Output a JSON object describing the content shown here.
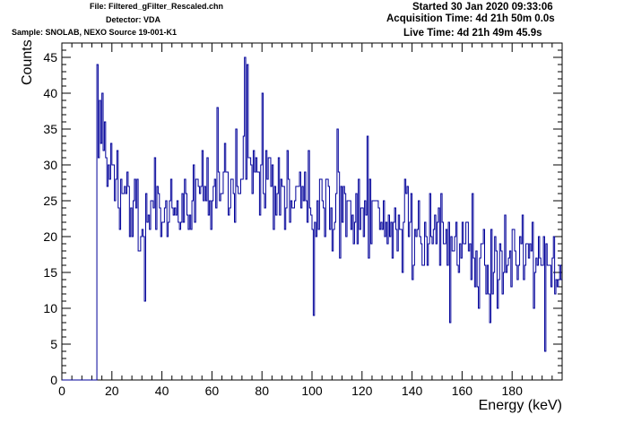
{
  "header": {
    "file": "File: Filtered_gFilter_Rescaled.chn",
    "detector": "Detector: VDA",
    "sample": "Sample: SNOLAB, NEXO Source 19-001-K1",
    "started": "Started 30 Jan 2020 09:33:06",
    "acquisition_time": "Acquisition Time: 4d 21h 50m 0.0s",
    "live_time": "Live Time: 4d 21h 49m 45.9s"
  },
  "chart_data": {
    "type": "histogram",
    "xlabel": "Energy (keV)",
    "ylabel": "Counts",
    "xlim": [
      0,
      200
    ],
    "ylim": [
      0,
      47
    ],
    "xticks": [
      0,
      20,
      40,
      60,
      80,
      100,
      120,
      140,
      160,
      180
    ],
    "yticks": [
      0,
      5,
      10,
      15,
      20,
      25,
      30,
      35,
      40,
      45
    ],
    "line_color": "#000099",
    "bin_width_kev": 0.5,
    "spectrum_start_kev": 14,
    "counts_below_start": 0,
    "leading_spike": {
      "energy_kev": 14,
      "counts": 44
    },
    "envelope": [
      {
        "energy_kev": 14,
        "counts": 34
      },
      {
        "energy_kev": 17,
        "counts": 33
      },
      {
        "energy_kev": 20,
        "counts": 28
      },
      {
        "energy_kev": 25,
        "counts": 26
      },
      {
        "energy_kev": 30,
        "counts": 24
      },
      {
        "energy_kev": 35,
        "counts": 22
      },
      {
        "energy_kev": 40,
        "counts": 22
      },
      {
        "energy_kev": 45,
        "counts": 23
      },
      {
        "energy_kev": 50,
        "counts": 24
      },
      {
        "energy_kev": 55,
        "counts": 25
      },
      {
        "energy_kev": 60,
        "counts": 26
      },
      {
        "energy_kev": 65,
        "counts": 27
      },
      {
        "energy_kev": 70,
        "counts": 28
      },
      {
        "energy_kev": 73,
        "counts": 31
      },
      {
        "energy_kev": 75,
        "counts": 29
      },
      {
        "energy_kev": 80,
        "counts": 28
      },
      {
        "energy_kev": 85,
        "counts": 27
      },
      {
        "energy_kev": 90,
        "counts": 26
      },
      {
        "energy_kev": 95,
        "counts": 25
      },
      {
        "energy_kev": 100,
        "counts": 24
      },
      {
        "energy_kev": 105,
        "counts": 24
      },
      {
        "energy_kev": 110,
        "counts": 23
      },
      {
        "energy_kev": 115,
        "counts": 23
      },
      {
        "energy_kev": 120,
        "counts": 22
      },
      {
        "energy_kev": 125,
        "counts": 22
      },
      {
        "energy_kev": 130,
        "counts": 22
      },
      {
        "energy_kev": 135,
        "counts": 21
      },
      {
        "energy_kev": 140,
        "counts": 21
      },
      {
        "energy_kev": 145,
        "counts": 20
      },
      {
        "energy_kev": 150,
        "counts": 20
      },
      {
        "energy_kev": 155,
        "counts": 19
      },
      {
        "energy_kev": 160,
        "counts": 19
      },
      {
        "energy_kev": 165,
        "counts": 18
      },
      {
        "energy_kev": 170,
        "counts": 17
      },
      {
        "energy_kev": 175,
        "counts": 17
      },
      {
        "energy_kev": 180,
        "counts": 16
      },
      {
        "energy_kev": 185,
        "counts": 16
      },
      {
        "energy_kev": 190,
        "counts": 16
      },
      {
        "energy_kev": 195,
        "counts": 16
      },
      {
        "energy_kev": 199.5,
        "counts": 17
      }
    ],
    "fluctuation_amplitude": 5,
    "notable_bins": [
      {
        "energy_kev": 15,
        "counts": 39
      },
      {
        "energy_kev": 16,
        "counts": 40
      },
      {
        "energy_kev": 33,
        "counts": 11
      },
      {
        "energy_kev": 37,
        "counts": 31
      },
      {
        "energy_kev": 62,
        "counts": 38
      },
      {
        "energy_kev": 73,
        "counts": 45
      },
      {
        "energy_kev": 74,
        "counts": 44
      },
      {
        "energy_kev": 80,
        "counts": 40
      },
      {
        "energy_kev": 100.5,
        "counts": 9
      },
      {
        "energy_kev": 110,
        "counts": 35
      },
      {
        "energy_kev": 122,
        "counts": 34
      },
      {
        "energy_kev": 155,
        "counts": 8
      },
      {
        "energy_kev": 171,
        "counts": 8
      },
      {
        "energy_kev": 193,
        "counts": 4
      }
    ]
  }
}
